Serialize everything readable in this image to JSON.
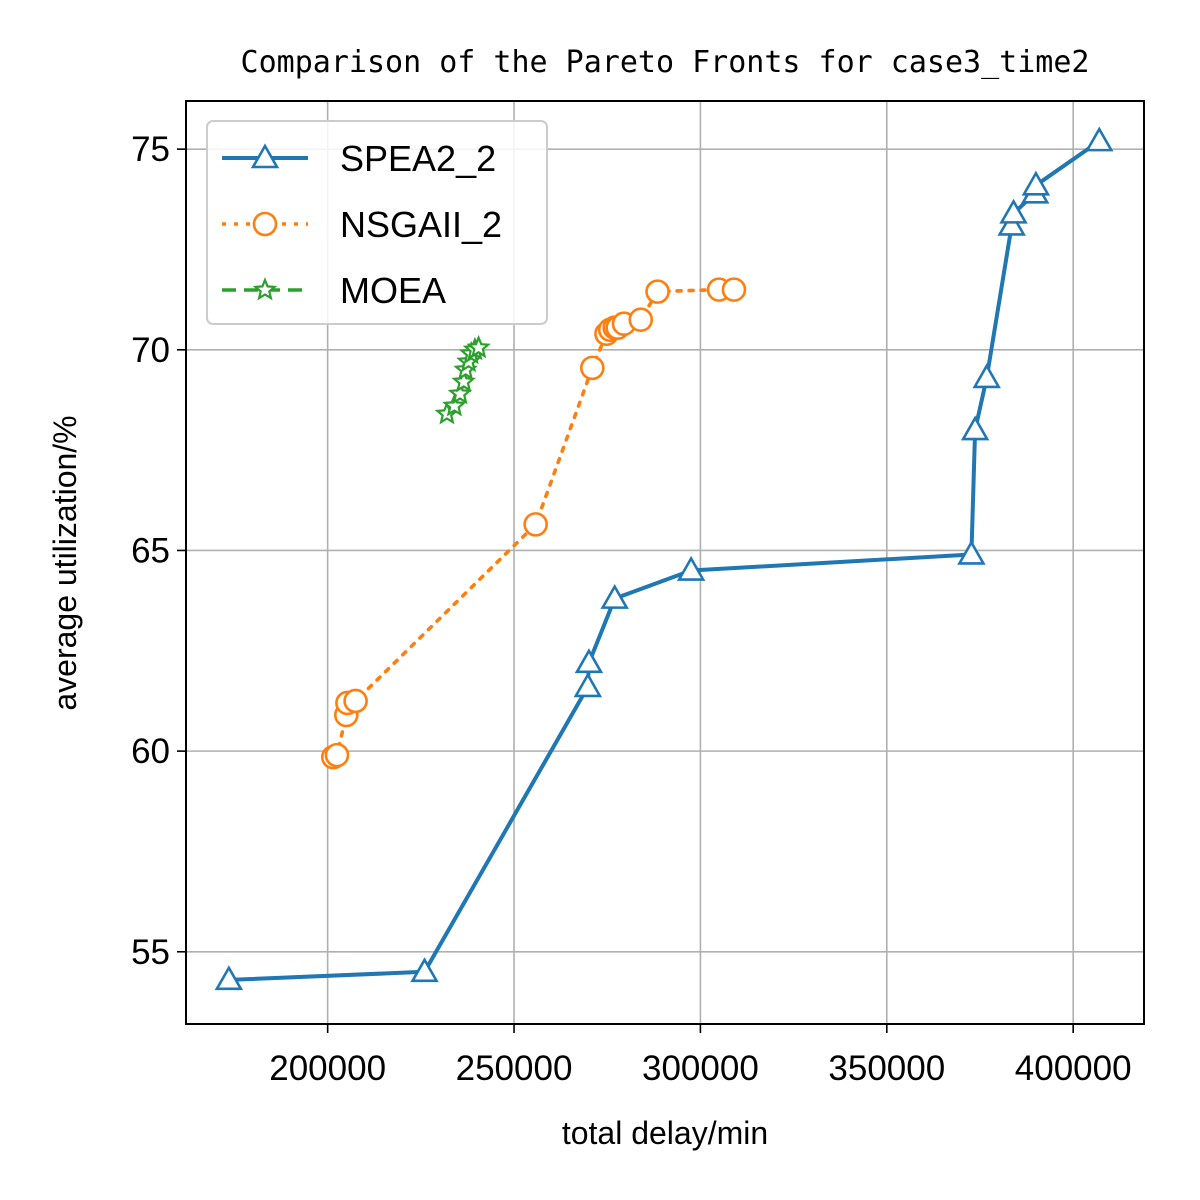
{
  "chart_data": {
    "type": "line",
    "title": "Comparison of the Pareto Fronts for case3_time2",
    "xlabel": "total delay/min",
    "ylabel": "average utilization/%",
    "xlim": [
      162000,
      419000
    ],
    "ylim": [
      53.2,
      76.2
    ],
    "xticks": [
      200000,
      250000,
      300000,
      350000,
      400000
    ],
    "yticks": [
      55,
      60,
      65,
      70,
      75
    ],
    "grid": true,
    "legend_position": "top-left",
    "series": [
      {
        "name": "SPEA2_2",
        "color": "#1f77b4",
        "line_style": "solid",
        "marker": "triangle-icon",
        "x": [
          173500,
          226000,
          269800,
          270100,
          277000,
          297500,
          372700,
          373700,
          376800,
          383500,
          384000,
          389800,
          390000,
          407000
        ],
        "y": [
          54.3,
          54.5,
          61.6,
          62.2,
          63.8,
          64.5,
          64.9,
          68.0,
          69.3,
          73.1,
          73.4,
          73.9,
          74.1,
          75.2
        ]
      },
      {
        "name": "NSGAII_2",
        "color": "#ff7f0e",
        "line_style": "dotted",
        "marker": "circle-icon",
        "x": [
          201500,
          202500,
          205000,
          205300,
          207500,
          255800,
          271000,
          274800,
          275800,
          277000,
          277800,
          279500,
          284000,
          288500,
          305000,
          309000
        ],
        "y": [
          59.85,
          59.9,
          60.9,
          61.2,
          61.25,
          65.65,
          69.55,
          70.4,
          70.5,
          70.55,
          70.55,
          70.65,
          70.75,
          71.45,
          71.5,
          71.5
        ]
      },
      {
        "name": "MOEA",
        "color": "#2ca02c",
        "line_style": "dashed",
        "marker": "star-icon",
        "x": [
          232000,
          234000,
          235500,
          236500,
          237000,
          237800,
          238500,
          239500,
          240500
        ],
        "y": [
          68.4,
          68.6,
          68.9,
          69.2,
          69.5,
          69.7,
          69.9,
          70.0,
          70.05
        ]
      }
    ]
  }
}
